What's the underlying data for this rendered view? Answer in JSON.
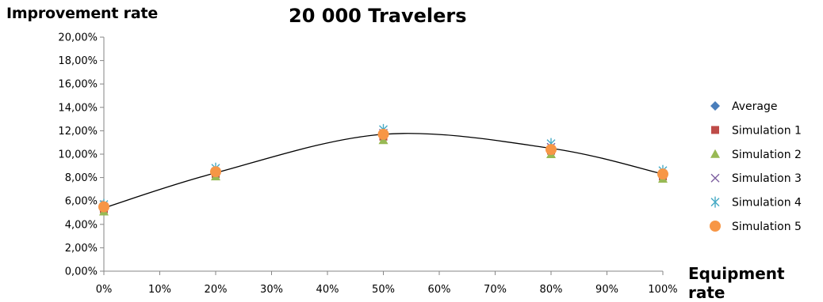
{
  "chart_data": {
    "type": "scatter",
    "title": "20 000 Travelers",
    "xlabel": "Equipment rate",
    "ylabel": "Improvement rate",
    "xlim": [
      0,
      100
    ],
    "ylim": [
      0,
      20
    ],
    "x_ticks": [
      "0%",
      "10%",
      "20%",
      "30%",
      "40%",
      "50%",
      "60%",
      "70%",
      "80%",
      "90%",
      "100%"
    ],
    "y_ticks": [
      "0,00%",
      "2,00%",
      "4,00%",
      "6,00%",
      "8,00%",
      "10,00%",
      "12,00%",
      "14,00%",
      "16,00%",
      "18,00%",
      "20,00%"
    ],
    "x": [
      0,
      20,
      50,
      80,
      100
    ],
    "series": [
      {
        "name": "Average",
        "marker": "diamond",
        "color": "#4a7ebb",
        "values": [
          5.4,
          8.4,
          11.6,
          10.4,
          8.2
        ]
      },
      {
        "name": "Simulation 1",
        "marker": "square",
        "color": "#be4b48",
        "values": [
          5.3,
          8.3,
          11.5,
          10.3,
          8.1
        ]
      },
      {
        "name": "Simulation 2",
        "marker": "triangle",
        "color": "#98b954",
        "values": [
          5.1,
          8.1,
          11.2,
          10.0,
          7.9
        ]
      },
      {
        "name": "Simulation 3",
        "marker": "x",
        "color": "#7d60a0",
        "values": [
          5.5,
          8.5,
          11.8,
          10.6,
          8.3
        ]
      },
      {
        "name": "Simulation 4",
        "marker": "star",
        "color": "#46aac5",
        "values": [
          5.7,
          8.8,
          12.1,
          10.9,
          8.6
        ]
      },
      {
        "name": "Simulation 5",
        "marker": "circle",
        "color": "#f79646",
        "values": [
          5.5,
          8.5,
          11.7,
          10.4,
          8.3
        ]
      }
    ],
    "trendline": {
      "x": [
        0,
        20,
        50,
        80,
        100
      ],
      "values": [
        5.4,
        8.4,
        11.7,
        10.5,
        8.3
      ],
      "color": "#000000"
    },
    "grid": false,
    "legend": "right"
  }
}
